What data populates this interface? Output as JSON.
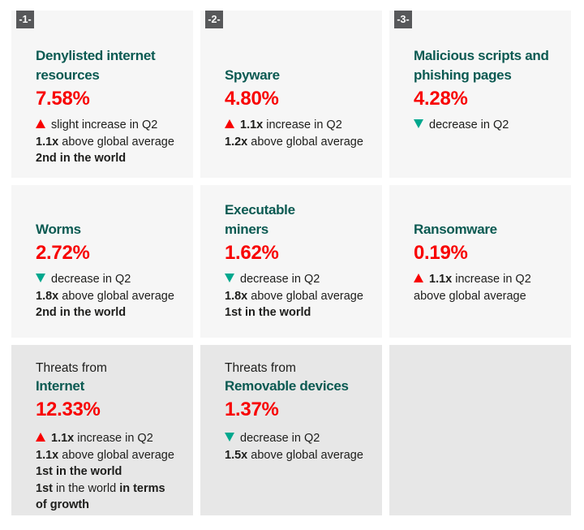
{
  "colors": {
    "teal": "#0b5a52",
    "red": "#f80000",
    "green": "#00a88e",
    "text": "#1d1d1b",
    "badge-bg": "#57585a",
    "badge-text": "#ffffff",
    "card-light": "#f6f6f6",
    "card-dark": "#e7e7e7",
    "page-bg": "#ffffff"
  },
  "chart_data": {
    "type": "table",
    "title": "Threat statistics by category (Q2)",
    "categories": [
      "Denylisted internet resources",
      "Spyware",
      "Malicious scripts and phishing pages",
      "Worms",
      "Executable miners",
      "Ransomware",
      "Threats from Internet",
      "Threats from Removable devices"
    ],
    "values": [
      7.58,
      4.8,
      4.28,
      2.72,
      1.62,
      0.19,
      12.33,
      1.37
    ],
    "unit": "%"
  },
  "cards": [
    {
      "badge": "-1-",
      "title_lines": [
        "Denylisted internet",
        "resources"
      ],
      "value": "7.58%",
      "details": [
        {
          "icon": "up-triangle",
          "runs": [
            {
              "text": "slight increase in Q2",
              "bold": false
            }
          ]
        },
        {
          "runs": [
            {
              "text": "1.1x",
              "bold": true
            },
            {
              "text": " above global average",
              "bold": false
            }
          ]
        },
        {
          "runs": [
            {
              "text": "2nd in the world",
              "bold": true
            }
          ]
        }
      ]
    },
    {
      "badge": "-2-",
      "title_lines": [
        "Spyware"
      ],
      "value": "4.80%",
      "details": [
        {
          "icon": "up-triangle",
          "runs": [
            {
              "text": "1.1x",
              "bold": true
            },
            {
              "text": " increase in Q2",
              "bold": false
            }
          ]
        },
        {
          "runs": [
            {
              "text": "1.2x",
              "bold": true
            },
            {
              "text": " above global average",
              "bold": false
            }
          ]
        }
      ]
    },
    {
      "badge": "-3-",
      "title_lines": [
        "Malicious scripts and",
        "phishing pages"
      ],
      "value": "4.28%",
      "details": [
        {
          "icon": "down-triangle",
          "runs": [
            {
              "text": "decrease in Q2",
              "bold": false
            }
          ]
        }
      ]
    },
    {
      "title_lines": [
        "Worms"
      ],
      "value": "2.72%",
      "details": [
        {
          "icon": "down-triangle",
          "runs": [
            {
              "text": "decrease in Q2",
              "bold": false
            }
          ]
        },
        {
          "runs": [
            {
              "text": "1.8x",
              "bold": true
            },
            {
              "text": " above global average",
              "bold": false
            }
          ]
        },
        {
          "runs": [
            {
              "text": "2nd in the world",
              "bold": true
            }
          ]
        }
      ]
    },
    {
      "title_lines": [
        "Executable",
        "miners"
      ],
      "value": "1.62%",
      "details": [
        {
          "icon": "down-triangle",
          "runs": [
            {
              "text": "decrease in Q2",
              "bold": false
            }
          ]
        },
        {
          "runs": [
            {
              "text": "1.8x",
              "bold": true
            },
            {
              "text": " above global average",
              "bold": false
            }
          ]
        },
        {
          "runs": [
            {
              "text": "1st in the world",
              "bold": true
            }
          ]
        }
      ]
    },
    {
      "title_lines": [
        "Ransomware"
      ],
      "value": "0.19%",
      "details": [
        {
          "icon": "up-triangle",
          "runs": [
            {
              "text": "1.1x",
              "bold": true
            },
            {
              "text": " increase in Q2",
              "bold": false
            }
          ]
        },
        {
          "runs": [
            {
              "text": "above global average",
              "bold": false
            }
          ]
        }
      ]
    },
    {
      "eyebrow": "Threats from",
      "title_lines": [
        "Internet"
      ],
      "value": "12.33%",
      "details": [
        {
          "icon": "up-triangle",
          "runs": [
            {
              "text": "1.1x",
              "bold": true
            },
            {
              "text": " increase in Q2",
              "bold": false
            }
          ]
        },
        {
          "runs": [
            {
              "text": "1.1x",
              "bold": true
            },
            {
              "text": " above global average",
              "bold": false
            }
          ]
        },
        {
          "runs": [
            {
              "text": "1st in the world",
              "bold": true
            }
          ]
        },
        {
          "runs": [
            {
              "text": "1st",
              "bold": true
            },
            {
              "text": " in the world ",
              "bold": false
            },
            {
              "text": "in terms",
              "bold": true
            }
          ]
        },
        {
          "runs": [
            {
              "text": "of growth",
              "bold": true
            }
          ]
        }
      ]
    },
    {
      "eyebrow": "Threats from",
      "title_lines": [
        "Removable devices"
      ],
      "value": "1.37%",
      "details": [
        {
          "icon": "down-triangle",
          "runs": [
            {
              "text": "decrease in Q2",
              "bold": false
            }
          ]
        },
        {
          "runs": [
            {
              "text": "1.5x",
              "bold": true
            },
            {
              "text": " above global average",
              "bold": false
            }
          ]
        }
      ]
    },
    {}
  ]
}
